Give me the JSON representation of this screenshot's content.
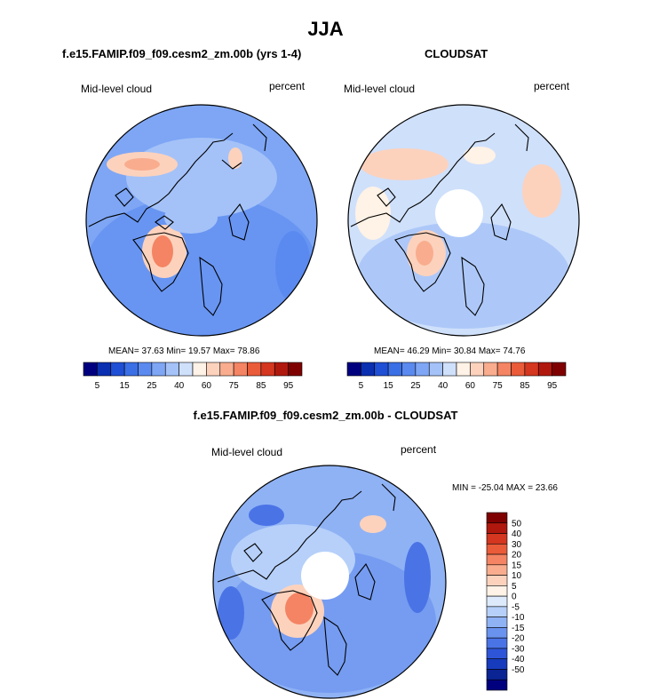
{
  "figure": {
    "main_title": "JJA",
    "bottom_title": "f.e15.FAMIP.f09_f09.cesm2_zm.00b - CLOUDSAT"
  },
  "panels": {
    "model": {
      "title": "f.e15.FAMIP.f09_f09.cesm2_zm.00b (yrs 1-4)",
      "left_label": "Mid-level cloud",
      "right_label": "percent",
      "stats": "MEAN=  37.63  Min=  19.57  Max=  78.86"
    },
    "obs": {
      "title": "CLOUDSAT",
      "left_label": "Mid-level cloud",
      "right_label": "percent",
      "stats": "MEAN=  46.29  Min=  30.84  Max=  74.76"
    },
    "diff": {
      "left_label": "Mid-level cloud",
      "right_label": "percent",
      "stats": "MIN = -25.04 MAX =  23.66"
    }
  },
  "colors": {
    "abs_scale": [
      "#00007f",
      "#0a2fb0",
      "#1f4fd4",
      "#3b6fe5",
      "#5a8af0",
      "#7ea6f5",
      "#a4c2f8",
      "#cfe0fb",
      "#fff2e6",
      "#fcd2bd",
      "#f9ad8e",
      "#f48463",
      "#ea5b3a",
      "#d4361f",
      "#b0180e",
      "#7f0000"
    ],
    "diff_scale": [
      "#7f0000",
      "#b0180e",
      "#d4361f",
      "#ea5b3a",
      "#f48463",
      "#f9ad8e",
      "#fcd2bd",
      "#fff2e6",
      "#ddeafc",
      "#b6d0fa",
      "#8fb2f5",
      "#6a93ef",
      "#4a73e6",
      "#2e55d8",
      "#173bbd",
      "#0b2494",
      "#00007f"
    ]
  },
  "chart_data": [
    {
      "type": "heatmap",
      "title": "f.e15.FAMIP.f09_f09.cesm2_zm.00b (yrs 1-4)",
      "variable": "Mid-level cloud",
      "units": "percent",
      "projection": "polar stereographic (north)",
      "colorbar_ticks": [
        5,
        15,
        25,
        40,
        60,
        75,
        85,
        95
      ],
      "mean": 37.63,
      "min": 19.57,
      "max": 78.86
    },
    {
      "type": "heatmap",
      "title": "CLOUDSAT",
      "variable": "Mid-level cloud",
      "units": "percent",
      "projection": "polar stereographic (north)",
      "colorbar_ticks": [
        5,
        15,
        25,
        40,
        60,
        75,
        85,
        95
      ],
      "mean": 46.29,
      "min": 30.84,
      "max": 74.76
    },
    {
      "type": "heatmap",
      "title": "f.e15.FAMIP.f09_f09.cesm2_zm.00b - CLOUDSAT",
      "variable": "Mid-level cloud",
      "units": "percent",
      "projection": "polar stereographic (north)",
      "colorbar_ticks": [
        50,
        40,
        30,
        20,
        15,
        10,
        5,
        0,
        -5,
        -10,
        -15,
        -20,
        -30,
        -40,
        -50
      ],
      "min": -25.04,
      "max": 23.66
    }
  ]
}
